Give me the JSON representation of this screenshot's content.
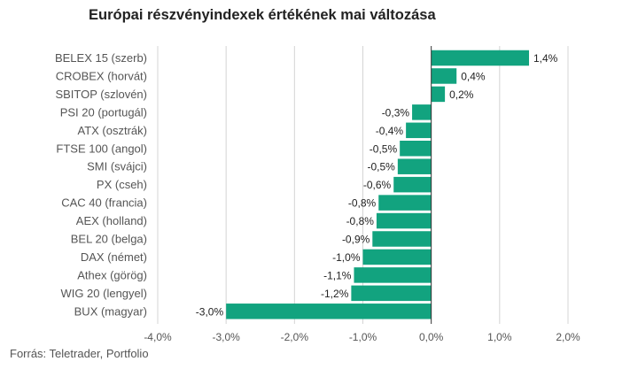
{
  "title": "Európai részvényindexek értékének mai változása",
  "source": "Forrás: Teletrader, Portfolio",
  "colors": {
    "bar": "#12a37f",
    "grid": "#d4d4d4",
    "axis": "#333333"
  },
  "chart_data": {
    "type": "bar",
    "orientation": "horizontal",
    "title": "Európai részvényindexek értékének mai változása",
    "categories": [
      "BELEX 15 (szerb)",
      "CROBEX (horvát)",
      "SBITOP (szlovén)",
      "PSI 20 (portugál)",
      "ATX (osztrák)",
      "FTSE 100 (angol)",
      "SMI (svájci)",
      "PX (cseh)",
      "CAC 40 (francia)",
      "AEX (holland)",
      "BEL 20 (belga)",
      "DAX (német)",
      "Athex (görög)",
      "WIG 20 (lengyel)",
      "BUX (magyar)"
    ],
    "values": [
      1.43,
      0.37,
      0.2,
      -0.28,
      -0.37,
      -0.46,
      -0.49,
      -0.55,
      -0.77,
      -0.8,
      -0.86,
      -1.0,
      -1.13,
      -1.17,
      -3.0
    ],
    "data_labels": [
      "1,4%",
      "0,4%",
      "0,2%",
      "-0,3%",
      "-0,4%",
      "-0,5%",
      "-0,5%",
      "-0,6%",
      "-0,8%",
      "-0,8%",
      "-0,9%",
      "-1,0%",
      "-1,1%",
      "-1,2%",
      "-3,0%"
    ],
    "xlim": [
      -4.0,
      2.0
    ],
    "ticks": [
      -4.0,
      -3.0,
      -2.0,
      -1.0,
      0.0,
      1.0,
      2.0
    ],
    "tick_labels": [
      "-4,0%",
      "-3,0%",
      "-2,0%",
      "-1,0%",
      "0,0%",
      "1,0%",
      "2,0%"
    ],
    "grid": true,
    "legend": "none"
  }
}
